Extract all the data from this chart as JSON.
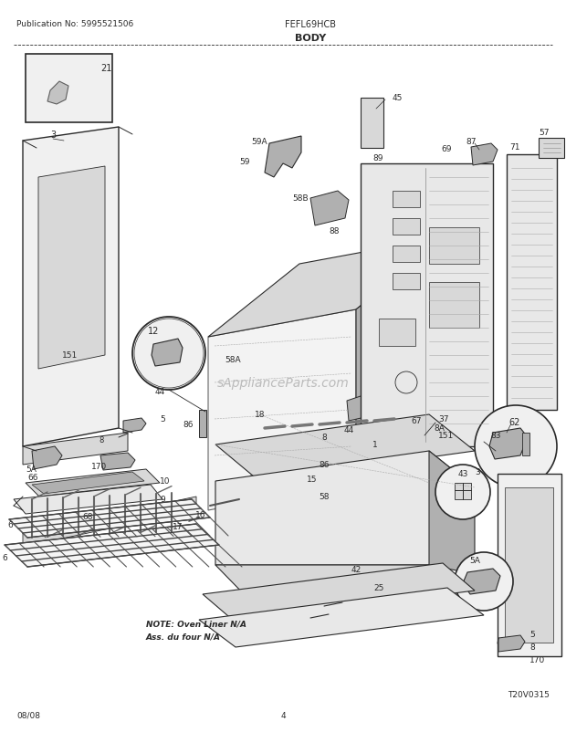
{
  "pub_no": "Publication No: 5995521506",
  "model": "FEFL69HCB",
  "section": "BODY",
  "date": "08/08",
  "page": "4",
  "diagram_id": "T20V0315",
  "note_line1": "NOTE: Oven Liner N/A",
  "note_line2": "Ass. du four N/A",
  "bg_color": "#ffffff",
  "line_color": "#2a2a2a",
  "gray1": "#c8c8c8",
  "gray2": "#e0e0e0",
  "gray3": "#b0b0b0",
  "gray4": "#d8d8d8",
  "gray5": "#f0f0f0"
}
